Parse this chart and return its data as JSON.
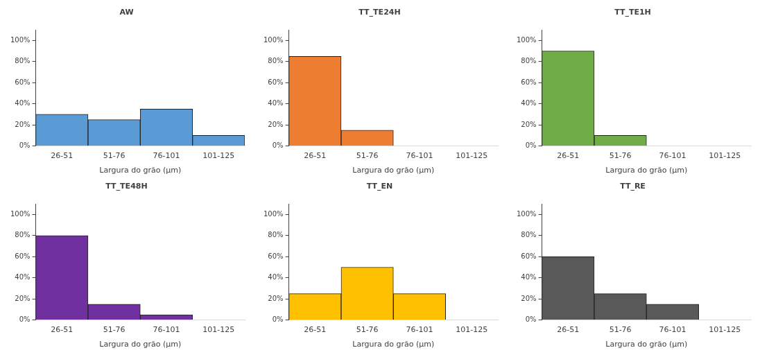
{
  "chart_data": [
    {
      "type": "bar",
      "title": "AW",
      "xlabel": "Largura do grão (µm)",
      "categories": [
        "26-51",
        "51-76",
        "76-101",
        "101-125"
      ],
      "values": [
        30,
        25,
        35,
        10
      ],
      "color": "#5b9bd5",
      "ylim": [
        0,
        110
      ],
      "yticks": [
        {
          "value": 0,
          "label": "0%"
        },
        {
          "value": 20,
          "label": "20%"
        },
        {
          "value": 40,
          "label": "40%"
        },
        {
          "value": 60,
          "label": "60%"
        },
        {
          "value": 80,
          "label": "80%"
        },
        {
          "value": 100,
          "label": "100%"
        }
      ],
      "grid": false,
      "legend": false
    },
    {
      "type": "bar",
      "title": "TT_TE24H",
      "xlabel": "Largura do grão (µm)",
      "categories": [
        "26-51",
        "51-76",
        "76-101",
        "101-125"
      ],
      "values": [
        85,
        15,
        0,
        0
      ],
      "color": "#ed7d31",
      "ylim": [
        0,
        110
      ],
      "yticks": [
        {
          "value": 0,
          "label": "0%"
        },
        {
          "value": 20,
          "label": "20%"
        },
        {
          "value": 40,
          "label": "40%"
        },
        {
          "value": 60,
          "label": "60%"
        },
        {
          "value": 80,
          "label": "80%"
        },
        {
          "value": 100,
          "label": "100%"
        }
      ],
      "grid": false,
      "legend": false
    },
    {
      "type": "bar",
      "title": "TT_TE1H",
      "xlabel": "Largura do grão (µm)",
      "categories": [
        "26-51",
        "51-76",
        "76-101",
        "101-125"
      ],
      "values": [
        90,
        10,
        0,
        0
      ],
      "color": "#70ad47",
      "ylim": [
        0,
        110
      ],
      "yticks": [
        {
          "value": 0,
          "label": "0%"
        },
        {
          "value": 20,
          "label": "20%"
        },
        {
          "value": 40,
          "label": "40%"
        },
        {
          "value": 60,
          "label": "60%"
        },
        {
          "value": 80,
          "label": "80%"
        },
        {
          "value": 100,
          "label": "100%"
        }
      ],
      "grid": false,
      "legend": false
    },
    {
      "type": "bar",
      "title": "TT_TE48H",
      "xlabel": "Largura do grão (µm)",
      "categories": [
        "26-51",
        "51-76",
        "76-101",
        "101-125"
      ],
      "values": [
        80,
        15,
        5,
        0
      ],
      "color": "#7030a0",
      "ylim": [
        0,
        110
      ],
      "yticks": [
        {
          "value": 0,
          "label": "0%"
        },
        {
          "value": 20,
          "label": "20%"
        },
        {
          "value": 40,
          "label": "40%"
        },
        {
          "value": 60,
          "label": "60%"
        },
        {
          "value": 80,
          "label": "80%"
        },
        {
          "value": 100,
          "label": "100%"
        }
      ],
      "grid": false,
      "legend": false
    },
    {
      "type": "bar",
      "title": "TT_EN",
      "xlabel": "Largura do grão (µm)",
      "categories": [
        "26-51",
        "51-76",
        "76-101",
        "101-125"
      ],
      "values": [
        25,
        50,
        25,
        0
      ],
      "color": "#ffc000",
      "ylim": [
        0,
        110
      ],
      "yticks": [
        {
          "value": 0,
          "label": "0%"
        },
        {
          "value": 20,
          "label": "20%"
        },
        {
          "value": 40,
          "label": "40%"
        },
        {
          "value": 60,
          "label": "60%"
        },
        {
          "value": 80,
          "label": "80%"
        },
        {
          "value": 100,
          "label": "100%"
        }
      ],
      "grid": false,
      "legend": false
    },
    {
      "type": "bar",
      "title": "TT_RE",
      "xlabel": "Largura do grão (µm)",
      "categories": [
        "26-51",
        "51-76",
        "76-101",
        "101-125"
      ],
      "values": [
        60,
        25,
        15,
        0
      ],
      "color": "#595959",
      "ylim": [
        0,
        110
      ],
      "yticks": [
        {
          "value": 0,
          "label": "0%"
        },
        {
          "value": 20,
          "label": "20%"
        },
        {
          "value": 40,
          "label": "40%"
        },
        {
          "value": 60,
          "label": "60%"
        },
        {
          "value": 80,
          "label": "80%"
        },
        {
          "value": 100,
          "label": "100%"
        }
      ],
      "grid": false,
      "legend": false
    }
  ]
}
